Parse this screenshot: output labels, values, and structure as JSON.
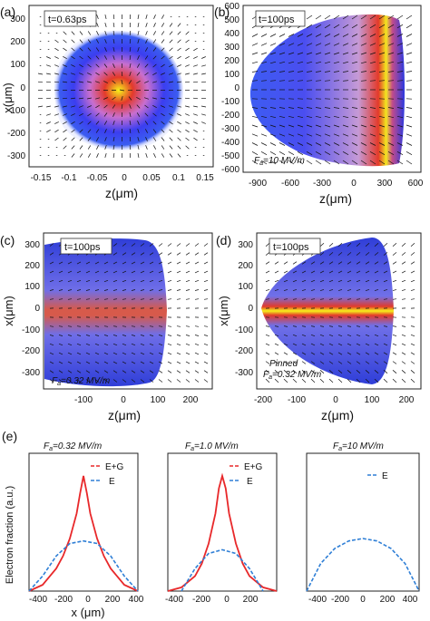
{
  "figure": {
    "panels": [
      {
        "letter": "(a)",
        "time_label": "t=0.63ps",
        "field_label": "",
        "pinned_label": "",
        "xlabel": "z(μm)",
        "ylabel": "x(μm)",
        "xticks": [
          "-0.15",
          "-0.1",
          "-0.05",
          "0",
          "0.05",
          "0.1",
          "0.15"
        ],
        "yticks": [
          "300",
          "200",
          "100",
          "0",
          "-100",
          "-200",
          "-300"
        ]
      },
      {
        "letter": "(b)",
        "time_label": "t=100ps",
        "field_label": "Fa=10 MV/m",
        "pinned_label": "",
        "xlabel": "z(μm)",
        "ylabel": "",
        "xticks": [
          "-900",
          "-600",
          "-300",
          "0",
          "300",
          "600"
        ],
        "yticks": [
          "600",
          "500",
          "400",
          "300",
          "200",
          "100",
          "0",
          "-100",
          "-200",
          "-300",
          "-400",
          "-500",
          "-600"
        ]
      },
      {
        "letter": "(c)",
        "time_label": "t=100ps",
        "field_label": "Fa=0.32 MV/m",
        "pinned_label": "",
        "xlabel": "z(μm)",
        "ylabel": "x(μm)",
        "xticks": [
          "-100",
          "0",
          "100",
          "200"
        ],
        "yticks": [
          "300",
          "200",
          "100",
          "0",
          "-100",
          "-200",
          "-300"
        ]
      },
      {
        "letter": "(d)",
        "time_label": "t=100ps",
        "field_label": "Pinned Fa=0.32 MV/m",
        "pinned_label": "Pinned",
        "xlabel": "z(μm)",
        "ylabel": "x(μm)",
        "xticks": [
          "-200",
          "-100",
          "0",
          "100",
          "200"
        ],
        "yticks": [
          "300",
          "200",
          "100",
          "0",
          "-100",
          "-200",
          "-300"
        ]
      }
    ],
    "bottom": {
      "letter": "(e)",
      "ylabel": "Electron fraction (a.u.)",
      "xlabel": "x (μm)",
      "xticks": [
        "-400",
        "-200",
        "0",
        "200",
        "400"
      ],
      "subplots": [
        {
          "title": "Fa=0.32 MV/m",
          "legend": [
            "E+G",
            "E"
          ]
        },
        {
          "title": "Fa=1.0 MV/m",
          "legend": [
            "E+G",
            "E"
          ]
        },
        {
          "title": "Fa=10 MV/m",
          "legend": [
            "E"
          ]
        }
      ]
    },
    "colors": {
      "eg_line": "#e8282a",
      "e_line": "#2f7fd6",
      "density_low": "#1a2fd0",
      "density_mid": "#e33a2a",
      "density_high": "#f6f21a"
    }
  },
  "chart_data": [
    {
      "type": "line",
      "title": "Fa=0.32 MV/m",
      "xlabel": "x (μm)",
      "ylabel": "Electron fraction (a.u.)",
      "xlim": [
        -400,
        400
      ],
      "ylim": [
        0,
        1.1
      ],
      "grid": false,
      "legend": "top-right",
      "series": [
        {
          "name": "E+G",
          "x": [
            -400,
            -300,
            -200,
            -150,
            -100,
            -50,
            -25,
            0,
            25,
            50,
            100,
            150,
            200,
            300,
            400
          ],
          "y": [
            0.0,
            0.05,
            0.18,
            0.28,
            0.42,
            0.62,
            0.78,
            0.92,
            0.78,
            0.62,
            0.42,
            0.28,
            0.18,
            0.05,
            0.0
          ]
        },
        {
          "name": "E",
          "x": [
            -400,
            -300,
            -200,
            -100,
            0,
            100,
            200,
            300,
            400
          ],
          "y": [
            0.0,
            0.12,
            0.28,
            0.38,
            0.4,
            0.38,
            0.28,
            0.12,
            0.0
          ]
        }
      ]
    },
    {
      "type": "line",
      "title": "Fa=1.0 MV/m",
      "xlabel": "x (μm)",
      "ylabel": "",
      "xlim": [
        -400,
        400
      ],
      "ylim": [
        0,
        1.1
      ],
      "grid": false,
      "legend": "top-right",
      "series": [
        {
          "name": "E+G",
          "x": [
            -400,
            -300,
            -200,
            -150,
            -100,
            -50,
            -25,
            0,
            25,
            50,
            100,
            150,
            200,
            300,
            400
          ],
          "y": [
            0.0,
            0.03,
            0.12,
            0.22,
            0.38,
            0.62,
            0.82,
            0.92,
            0.82,
            0.62,
            0.38,
            0.22,
            0.12,
            0.03,
            0.0
          ]
        },
        {
          "name": "E",
          "x": [
            -300,
            -200,
            -100,
            0,
            100,
            200,
            300
          ],
          "y": [
            0.0,
            0.18,
            0.3,
            0.33,
            0.3,
            0.18,
            0.0
          ]
        }
      ]
    },
    {
      "type": "line",
      "title": "Fa=10 MV/m",
      "xlabel": "x (μm)",
      "ylabel": "",
      "xlim": [
        -400,
        400
      ],
      "ylim": [
        0,
        1.1
      ],
      "grid": false,
      "legend": "top-right",
      "series": [
        {
          "name": "E",
          "x": [
            -400,
            -300,
            -200,
            -100,
            0,
            100,
            200,
            300,
            400
          ],
          "y": [
            0.0,
            0.22,
            0.34,
            0.4,
            0.42,
            0.4,
            0.34,
            0.22,
            0.0
          ]
        }
      ]
    }
  ]
}
